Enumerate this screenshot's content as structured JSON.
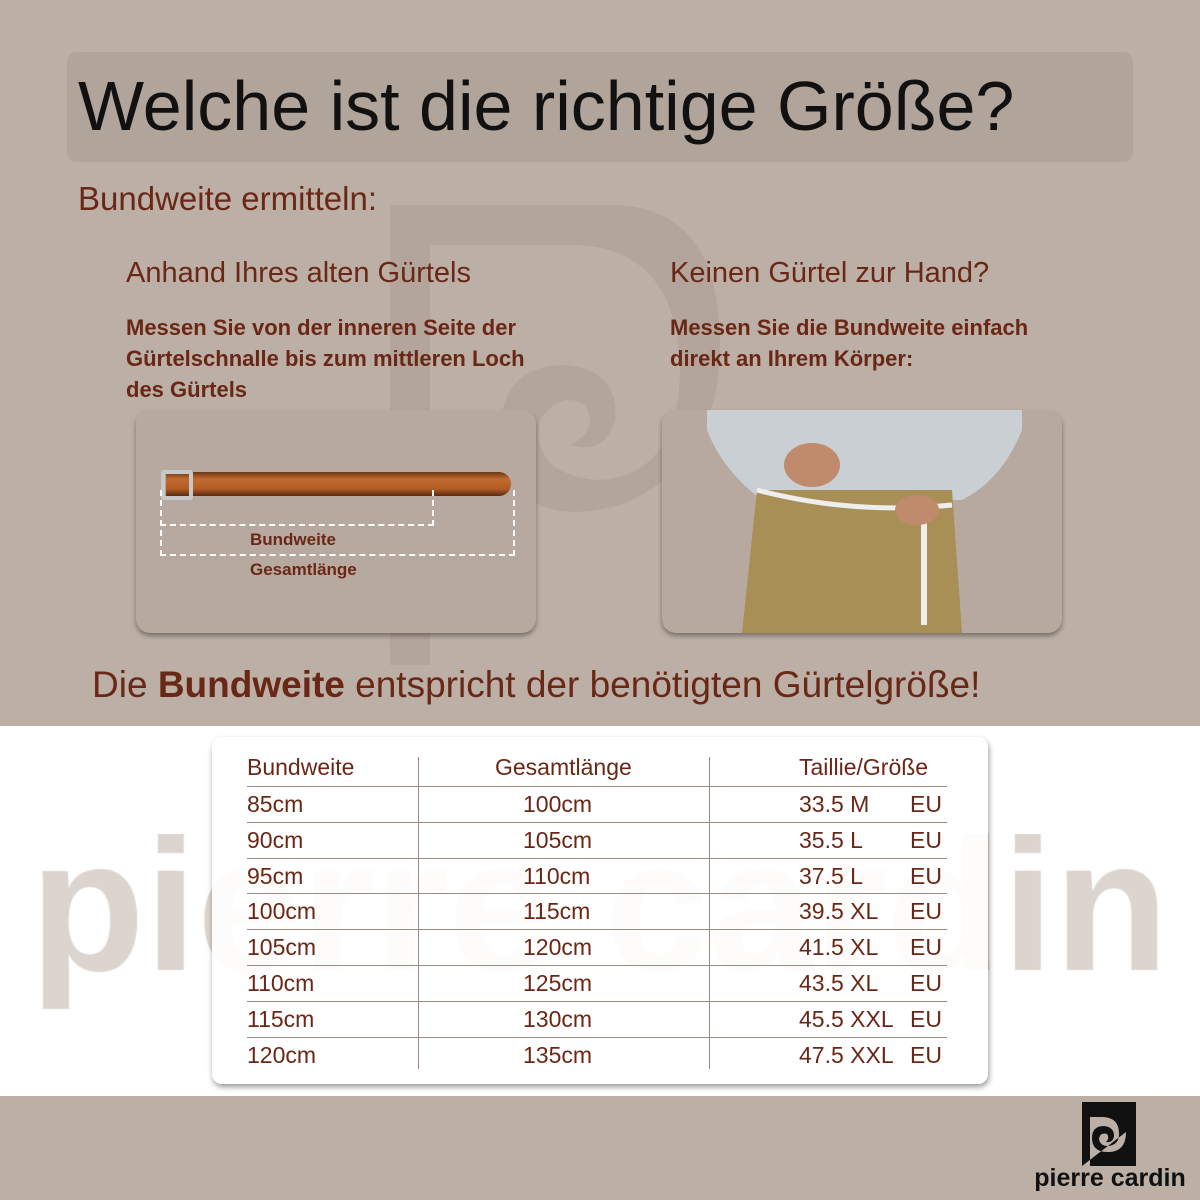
{
  "title": "Welche ist die richtige Größe?",
  "section_heading": "Bundweite ermitteln:",
  "left": {
    "heading": "Anhand Ihres alten Gürtels",
    "text_lines": [
      "Messen Sie von der inneren Seite der",
      "Gürtelschnalle bis zum mittleren Loch",
      "des Gürtels"
    ],
    "label_waist": "Bundweite",
    "label_total": "Gesamtlänge"
  },
  "right": {
    "heading": "Keinen Gürtel zur Hand?",
    "text_lines": [
      "Messen Sie die Bundweite einfach",
      "direkt an Ihrem Körper:"
    ]
  },
  "conclusion": {
    "pre": "Die ",
    "bold": "Bundweite",
    "post": " entspricht der benötigten Gürtelgröße!"
  },
  "watermark": "pierre cardin",
  "table": {
    "headers": [
      "Bundweite",
      "Gesamtlänge",
      "Taillie/Größe"
    ],
    "rows": [
      [
        "85cm",
        "100cm",
        "33.5 M",
        "EU"
      ],
      [
        "90cm",
        "105cm",
        "35.5 L",
        "EU"
      ],
      [
        "95cm",
        "110cm",
        "37.5 L",
        "EU"
      ],
      [
        "100cm",
        "115cm",
        "39.5 XL",
        "EU"
      ],
      [
        "105cm",
        "120cm",
        "41.5 XL",
        "EU"
      ],
      [
        "110cm",
        "125cm",
        "43.5 XL",
        "EU"
      ],
      [
        "115cm",
        "130cm",
        "45.5 XXL",
        "EU"
      ],
      [
        "120cm",
        "135cm",
        "47.5 XXL",
        "EU"
      ]
    ]
  },
  "logo": {
    "text": "pierre cardin"
  },
  "colors": {
    "background": "#bcafa5",
    "text_brown": "#6a2716"
  }
}
